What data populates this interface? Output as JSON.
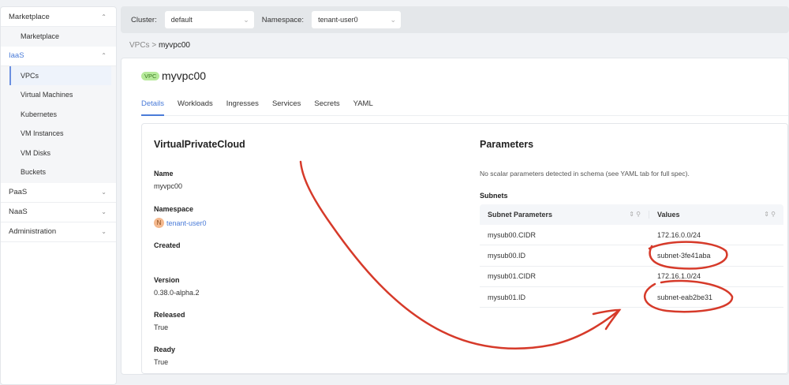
{
  "sidebar": {
    "sections": [
      {
        "label": "Marketplace",
        "items": [
          "Marketplace"
        ]
      },
      {
        "label": "IaaS",
        "items": [
          "VPCs",
          "Virtual Machines",
          "Kubernetes",
          "VM Instances",
          "VM Disks",
          "Buckets"
        ]
      },
      {
        "label": "PaaS"
      },
      {
        "label": "NaaS"
      },
      {
        "label": "Administration"
      }
    ],
    "accent": "#4a7bd8"
  },
  "topbar": {
    "cluster_label": "Cluster:",
    "cluster_value": "default",
    "namespace_label": "Namespace:",
    "namespace_value": "tenant-user0"
  },
  "breadcrumb": {
    "parent": "VPCs",
    "sep": ">",
    "current": "myvpc00"
  },
  "header": {
    "badge": "VPC",
    "title": "myvpc00"
  },
  "tabs": [
    "Details",
    "Workloads",
    "Ingresses",
    "Services",
    "Secrets",
    "YAML"
  ],
  "details": {
    "title": "VirtualPrivateCloud",
    "name_label": "Name",
    "name": "myvpc00",
    "namespace_label": "Namespace",
    "namespace_icon": "N",
    "namespace": "tenant-user0",
    "created_label": "Created",
    "version_label": "Version",
    "version": "0.38.0-alpha.2",
    "released_label": "Released",
    "released": "True",
    "ready_label": "Ready",
    "ready": "True"
  },
  "parameters": {
    "title": "Parameters",
    "note": "No scalar parameters detected in schema (see YAML tab for full spec).",
    "subnets_label": "Subnets",
    "col1": "Subnet Parameters",
    "col2": "Values",
    "rows": [
      [
        "mysub00.CIDR",
        "172.16.0.0/24"
      ],
      [
        "mysub00.ID",
        "subnet-3fe41aba"
      ],
      [
        "mysub01.CIDR",
        "172.16.1.0/24"
      ],
      [
        "mysub01.ID",
        "subnet-eab2be31"
      ]
    ]
  },
  "annotation_color": "#d63a2a"
}
